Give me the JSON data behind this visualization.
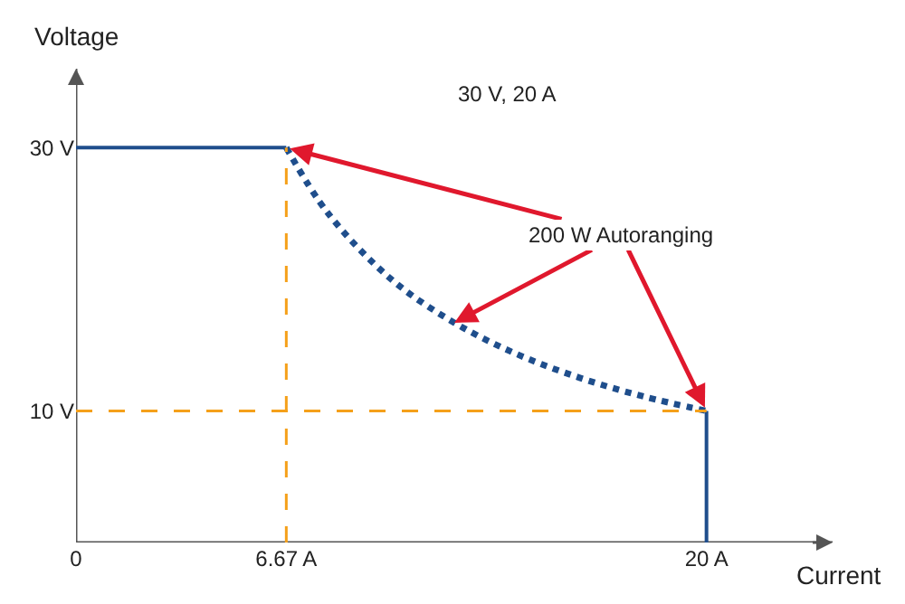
{
  "chart_data": {
    "type": "line",
    "xlabel": "Current",
    "ylabel": "Voltage",
    "annotations": [
      "30 V, 20 A",
      {
        "text": "200 W Autoranging",
        "x": 12,
        "y": 16.7
      }
    ],
    "xlim": [
      0,
      24
    ],
    "ylim": [
      0,
      36
    ],
    "xticks": [
      0,
      {
        "value": 6.67,
        "label": "6.67 A"
      },
      {
        "value": 20,
        "label": "20 A"
      }
    ],
    "yticks": [
      {
        "value": 10,
        "label": "10 V"
      },
      {
        "value": 30,
        "label": "30 V"
      }
    ],
    "series": [
      {
        "color": "#1f4e8c",
        "x": [
          0,
          6.67
        ],
        "values": [
          30,
          30
        ],
        "line_style": "solid"
      },
      {
        "color": "#1f4e8c",
        "x": [
          6.67,
          8,
          10,
          12,
          14,
          16,
          18,
          20
        ],
        "values": [
          30,
          25,
          20,
          16.7,
          14.3,
          12.5,
          11.1,
          10
        ],
        "line_style": "dotted"
      },
      {
        "color": "#1f4e8c",
        "x": [
          20,
          20
        ],
        "values": [
          10,
          0
        ],
        "line_style": "solid"
      },
      {
        "color": "#f5a01a",
        "x": [
          6.67,
          6.67
        ],
        "values": [
          0,
          30
        ],
        "line_style": "dashed"
      },
      {
        "color": "#f5a01a",
        "x": [
          0,
          20
        ],
        "values": [
          10,
          10
        ],
        "line_style": "dashed"
      }
    ]
  }
}
